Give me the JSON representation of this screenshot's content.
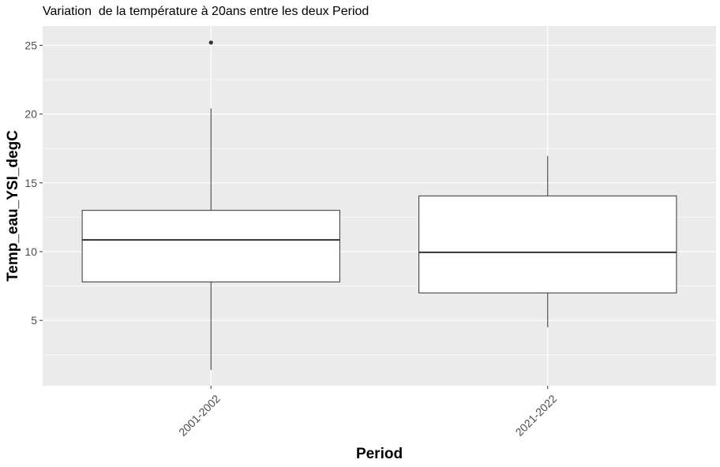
{
  "chart_data": {
    "type": "boxplot",
    "title": "Variation  de la température à 20ans entre les deux Period",
    "xlabel": "Period",
    "ylabel": "Temp_eau_YSI_degC",
    "categories": [
      "2001-2002",
      "2021-2022"
    ],
    "ylim": [
      0.25,
      26.4
    ],
    "yticks": [
      5,
      10,
      15,
      20,
      25
    ],
    "grid": true,
    "boxes": [
      {
        "category": "2001-2002",
        "lower_whisker": 1.4,
        "q1": 7.8,
        "median": 10.85,
        "q3": 13.0,
        "upper_whisker": 20.4,
        "outliers": [
          25.2
        ]
      },
      {
        "category": "2021-2022",
        "lower_whisker": 4.5,
        "q1": 7.0,
        "median": 9.95,
        "q3": 14.05,
        "upper_whisker": 16.95,
        "outliers": []
      }
    ],
    "colors": {
      "panel": "#ebebeb",
      "grid": "#ffffff",
      "box_fill": "#ffffff",
      "line": "#333333"
    }
  }
}
